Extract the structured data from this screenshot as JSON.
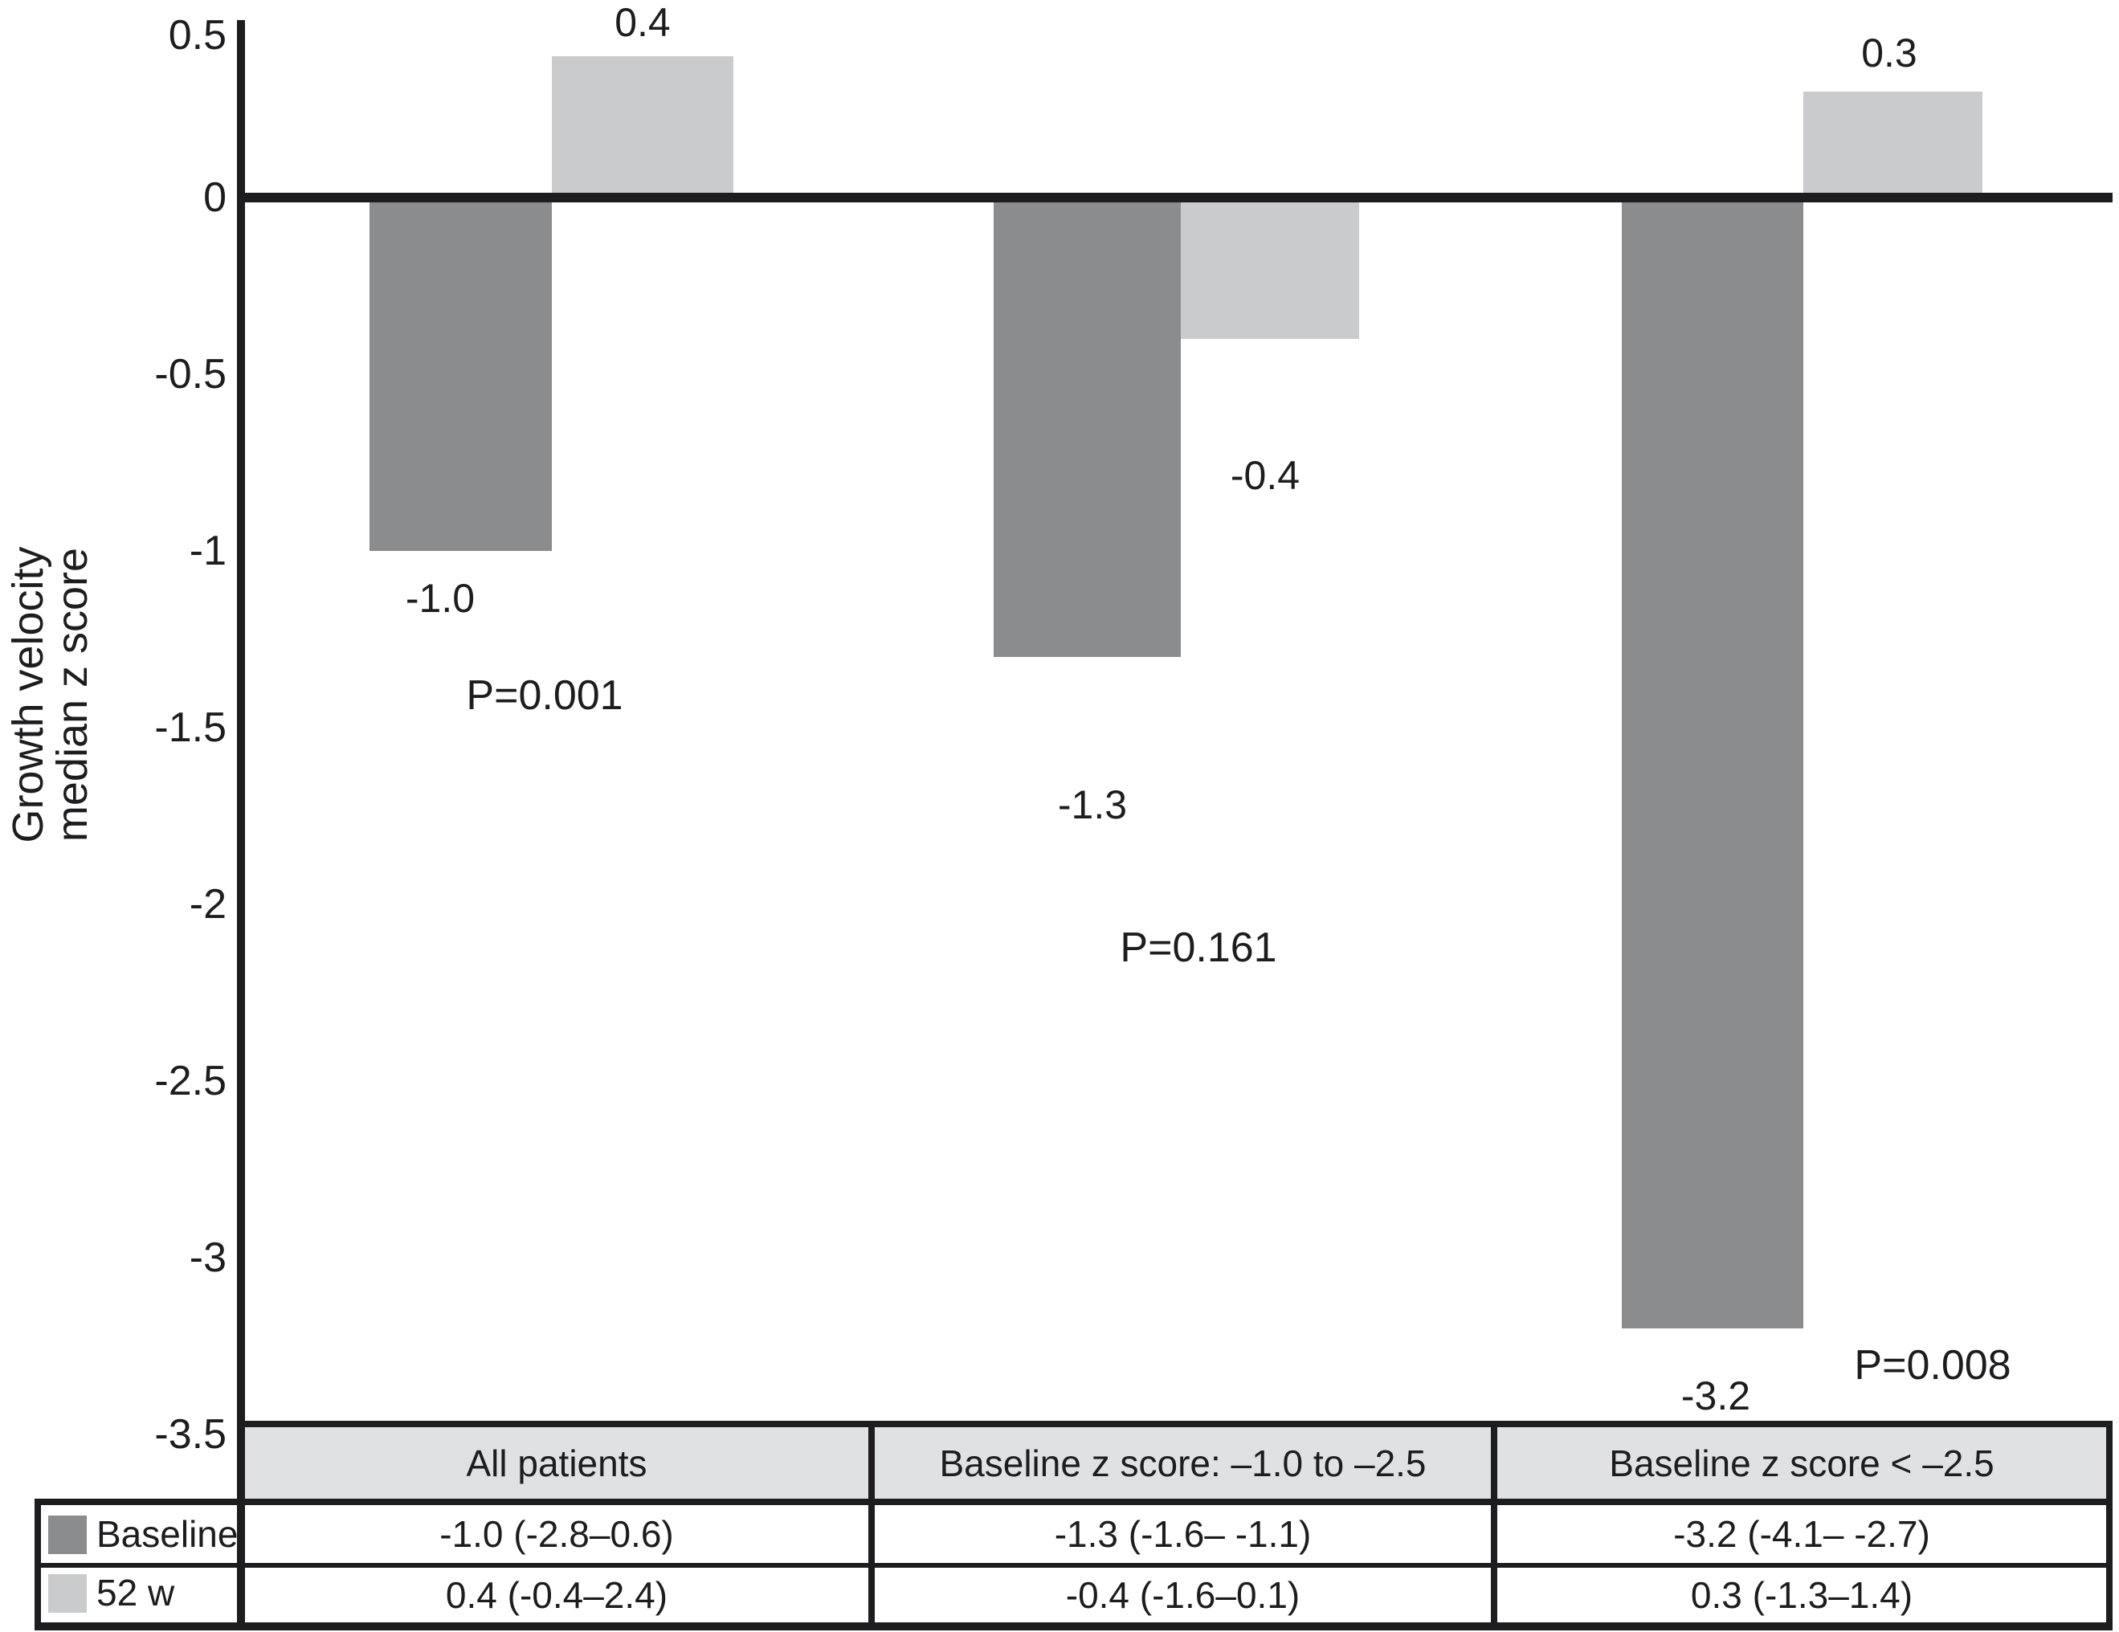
{
  "chart_data": {
    "type": "bar",
    "title": "",
    "ylabel_line1": "Growth velocity",
    "ylabel_line2": "median z score",
    "xlabel": "",
    "ylim": [
      -3.5,
      0.5
    ],
    "grid": false,
    "yticks": [
      "0.5",
      "0",
      "-0.5",
      "-1",
      "-1.5",
      "-2",
      "-2.5",
      "-3",
      "-3.5"
    ],
    "categories": [
      "All patients",
      "Baseline z score: –1.0 to –2.5",
      "Baseline z score < –2.5"
    ],
    "series": [
      {
        "name": "Baseline",
        "values": [
          -1.0,
          -1.3,
          -3.2
        ],
        "labels": [
          "-1.0",
          "-1.3",
          "-3.2"
        ],
        "color": "#8a8c8e"
      },
      {
        "name": "52 w",
        "values": [
          0.4,
          -0.4,
          0.3
        ],
        "labels": [
          "0.4",
          "-0.4",
          "0.3"
        ],
        "color": "#c9cbcd"
      }
    ],
    "p_values": [
      "P=0.001",
      "P=0.161",
      "P=0.008"
    ],
    "legend_position": "bottom-left of table"
  },
  "table": {
    "header_bg": "#e0e1e3",
    "legend": [
      {
        "label": "Baseline",
        "color": "#8a8c8e"
      },
      {
        "label": "52 w",
        "color": "#c9cbcd"
      }
    ],
    "columns": [
      {
        "header": "All patients",
        "baseline": "-1.0 (-2.8–0.6)",
        "week52": "0.4 (-0.4–2.4)"
      },
      {
        "header": "Baseline z score: –1.0 to –2.5",
        "baseline": "-1.3 (-1.6– -1.1)",
        "week52": "-0.4 (-1.6–0.1)"
      },
      {
        "header": "Baseline z score < –2.5",
        "baseline": "-3.2 (-4.1– -2.7)",
        "week52": "0.3 (-1.3–1.4)"
      }
    ]
  },
  "colors": {
    "line": "#1d1d1f",
    "text": "#1d1d1f",
    "background": "#ffffff"
  }
}
